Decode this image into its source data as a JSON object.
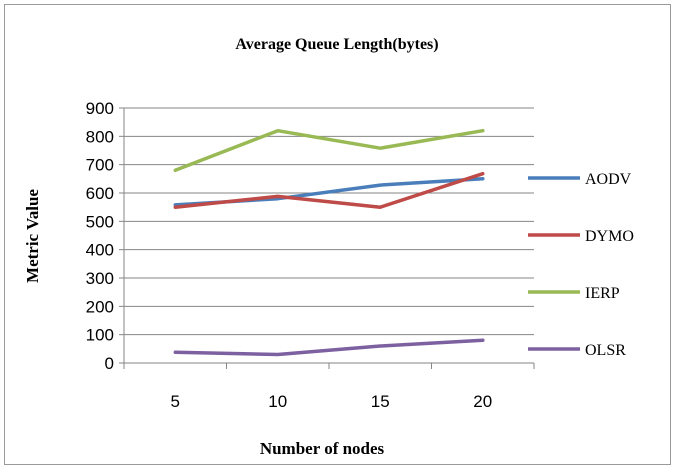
{
  "chart_data": {
    "type": "line",
    "title": "Average Queue Length(bytes)",
    "xlabel": "Number of nodes",
    "ylabel": "Metric Value",
    "categories": [
      "5",
      "10",
      "15",
      "20"
    ],
    "ylim": [
      0,
      900
    ],
    "yticks": [
      0,
      100,
      200,
      300,
      400,
      500,
      600,
      700,
      800,
      900
    ],
    "grid": true,
    "legend_position": "right",
    "series": [
      {
        "name": "AODV",
        "color": "#4a7ebb",
        "values": [
          558,
          580,
          628,
          650
        ]
      },
      {
        "name": "DYMO",
        "color": "#be4b48",
        "values": [
          550,
          588,
          550,
          668
        ]
      },
      {
        "name": "IERP",
        "color": "#98b954",
        "values": [
          680,
          820,
          758,
          820
        ]
      },
      {
        "name": "OLSR",
        "color": "#7d60a0",
        "values": [
          38,
          30,
          60,
          80
        ]
      }
    ]
  }
}
